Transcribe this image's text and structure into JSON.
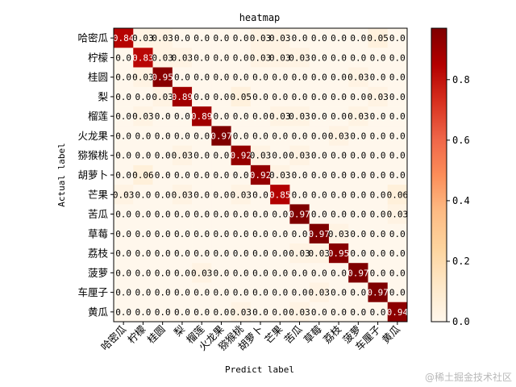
{
  "chart_data": {
    "type": "heatmap",
    "title": "heatmap",
    "xlabel": "Predict label",
    "ylabel": "Actual label",
    "labels": [
      "哈密瓜",
      "柠檬",
      "桂圆",
      "梨",
      "榴莲",
      "火龙果",
      "猕猴桃",
      "胡萝卜",
      "芒果",
      "苦瓜",
      "草莓",
      "荔枝",
      "菠萝",
      "车厘子",
      "黄瓜"
    ],
    "cells": [
      [
        "0.84",
        "0.03",
        "0.03",
        "0.0",
        "0.0",
        "0.0",
        "0.0",
        "0.03",
        "0.03",
        "0.0",
        "0.0",
        "0.0",
        "0.0",
        "0.05",
        "0.0"
      ],
      [
        "0.0",
        "0.83",
        "0.03",
        "0.03",
        "0.0",
        "0.0",
        "0.0",
        "0.03",
        "0.03",
        "0.03",
        "0.0",
        "0.0",
        "0.0",
        "0.0",
        "0.0"
      ],
      [
        "0.0",
        "0.03",
        "0.95",
        "0.0",
        "0.0",
        "0.0",
        "0.0",
        "0.0",
        "0.0",
        "0.0",
        "0.0",
        "0.0",
        "0.03",
        "0.0",
        "0.0"
      ],
      [
        "0.0",
        "0.0",
        "0.03",
        "0.89",
        "0.0",
        "0.0",
        "0.05",
        "0.0",
        "0.0",
        "0.0",
        "0.0",
        "0.0",
        "0.0",
        "0.03",
        "0.0"
      ],
      [
        "0.0",
        "0.03",
        "0.0",
        "0.0",
        "0.89",
        "0.0",
        "0.0",
        "0.0",
        "0.03",
        "0.03",
        "0.0",
        "0.0",
        "0.03",
        "0.0",
        "0.0"
      ],
      [
        "0.0",
        "0.0",
        "0.0",
        "0.0",
        "0.0",
        "0.97",
        "0.0",
        "0.0",
        "0.0",
        "0.0",
        "0.0",
        "0.03",
        "0.0",
        "0.0",
        "0.0"
      ],
      [
        "0.0",
        "0.0",
        "0.0",
        "0.03",
        "0.0",
        "0.0",
        "0.92",
        "0.03",
        "0.0",
        "0.03",
        "0.0",
        "0.0",
        "0.0",
        "0.0",
        "0.0"
      ],
      [
        "0.0",
        "0.06",
        "0.0",
        "0.0",
        "0.0",
        "0.0",
        "0.0",
        "0.92",
        "0.03",
        "0.0",
        "0.0",
        "0.0",
        "0.0",
        "0.0",
        "0.0"
      ],
      [
        "0.03",
        "0.0",
        "0.0",
        "0.03",
        "0.0",
        "0.0",
        "0.03",
        "0.0",
        "0.85",
        "0.0",
        "0.0",
        "0.0",
        "0.0",
        "0.0",
        "0.06"
      ],
      [
        "0.0",
        "0.0",
        "0.0",
        "0.0",
        "0.0",
        "0.0",
        "0.0",
        "0.0",
        "0.0",
        "0.97",
        "0.0",
        "0.0",
        "0.0",
        "0.0",
        "0.03"
      ],
      [
        "0.0",
        "0.0",
        "0.0",
        "0.0",
        "0.0",
        "0.0",
        "0.0",
        "0.0",
        "0.0",
        "0.0",
        "0.97",
        "0.03",
        "0.0",
        "0.0",
        "0.0"
      ],
      [
        "0.0",
        "0.0",
        "0.0",
        "0.0",
        "0.0",
        "0.0",
        "0.0",
        "0.0",
        "0.0",
        "0.03",
        "0.03",
        "0.95",
        "0.0",
        "0.0",
        "0.0"
      ],
      [
        "0.0",
        "0.0",
        "0.0",
        "0.0",
        "0.03",
        "0.0",
        "0.0",
        "0.0",
        "0.0",
        "0.0",
        "0.0",
        "0.0",
        "0.97",
        "0.0",
        "0.0"
      ],
      [
        "0.0",
        "0.0",
        "0.0",
        "0.0",
        "0.0",
        "0.0",
        "0.0",
        "0.0",
        "0.0",
        "0.0",
        "0.03",
        "0.0",
        "0.0",
        "0.97",
        "0.0"
      ],
      [
        "0.0",
        "0.0",
        "0.0",
        "0.0",
        "0.0",
        "0.0",
        "0.03",
        "0.0",
        "0.0",
        "0.03",
        "0.0",
        "0.0",
        "0.0",
        "0.0",
        "0.94"
      ]
    ],
    "colorbar": {
      "range": [
        0.0,
        0.97
      ],
      "ticks": [
        0.0,
        0.2,
        0.4,
        0.6,
        0.8
      ],
      "tick_labels": [
        "0.0",
        "0.2",
        "0.4",
        "0.6",
        "0.8"
      ],
      "colormap": "OrRd",
      "stops": [
        "#fff7ec",
        "#fee8c8",
        "#fdd49e",
        "#fdbb84",
        "#fc8d59",
        "#ef6548",
        "#d7301f",
        "#b30000",
        "#7f0000"
      ]
    },
    "grid": false,
    "legend": "colorbar-right"
  },
  "watermark": "@稀土掘金技术社区"
}
